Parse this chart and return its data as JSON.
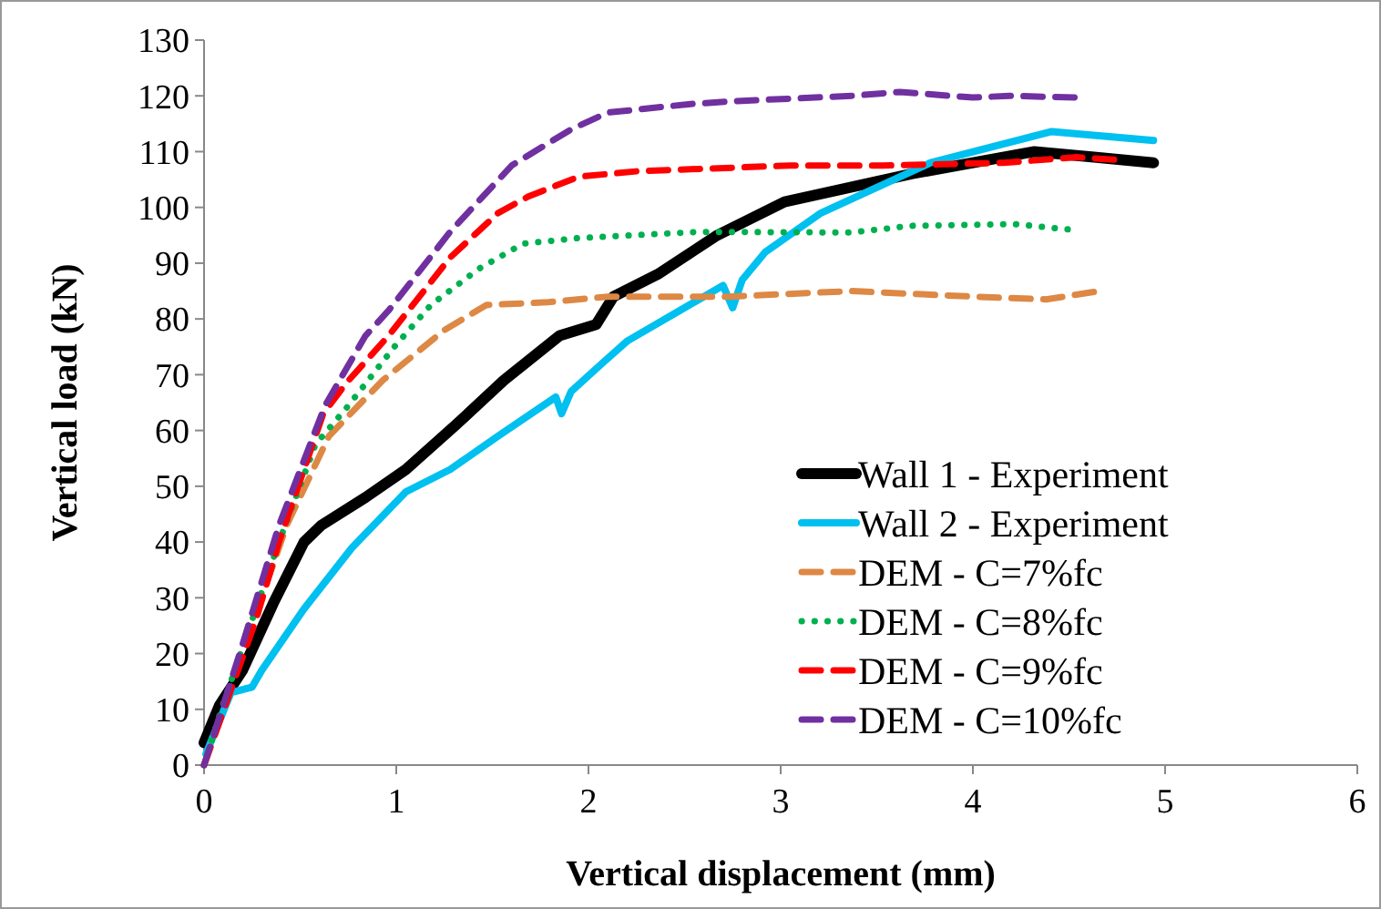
{
  "chart_data": {
    "type": "line",
    "xlabel": "Vertical displacement (mm)",
    "ylabel": "Vertical load (kN)",
    "xlim": [
      0,
      6
    ],
    "xticks": [
      0,
      1,
      2,
      3,
      4,
      5,
      6
    ],
    "ylim": [
      0,
      130
    ],
    "yticks": [
      0,
      10,
      20,
      30,
      40,
      50,
      60,
      70,
      80,
      90,
      100,
      110,
      120,
      130
    ],
    "grid": false,
    "legend": "bottom right",
    "marker": "none",
    "series": [
      {
        "name": "Wall 1 - Experiment",
        "color": "#000000",
        "line_style": "solid",
        "x": [
          0,
          0.08,
          0.2,
          0.36,
          0.52,
          0.61,
          0.84,
          1.05,
          1.31,
          1.56,
          1.85,
          2.04,
          2.13,
          2.36,
          2.67,
          3.02,
          3.68,
          4.32,
          4.63,
          4.94
        ],
        "values": [
          4,
          10.7,
          17,
          29,
          40,
          43,
          48,
          53,
          61,
          69,
          77,
          79,
          84,
          88,
          95,
          101,
          106,
          110,
          109,
          108
        ]
      },
      {
        "name": "Wall 2 - Experiment",
        "color": "#00c0f0",
        "line_style": "solid",
        "x": [
          0.01,
          0.14,
          0.25,
          0.3,
          0.52,
          0.77,
          1.05,
          1.28,
          1.53,
          1.83,
          1.86,
          1.91,
          2.07,
          2.2,
          2.45,
          2.7,
          2.75,
          2.8,
          2.92,
          3.21,
          3.78,
          4.41,
          4.94
        ],
        "values": [
          2,
          13,
          14,
          17,
          28,
          39,
          49,
          53,
          59,
          66,
          63,
          67,
          72,
          76,
          81,
          86,
          82,
          87,
          92,
          99,
          108,
          113.6,
          112
        ]
      },
      {
        "name": "DEM - C=7%fc",
        "color": "#dd8844",
        "line_style": "dashed",
        "x": [
          0,
          0.14,
          0.43,
          0.65,
          0.93,
          1.25,
          1.47,
          1.79,
          2.1,
          2.73,
          3.37,
          4.0,
          4.38,
          4.66
        ],
        "values": [
          0,
          14,
          43,
          59,
          69,
          78,
          82.5,
          83,
          84,
          84,
          85,
          84,
          83.5,
          85
        ]
      },
      {
        "name": "DEM - C=8%fc",
        "color": "#00b050",
        "line_style": "dotted",
        "x": [
          0,
          0.1,
          0.39,
          0.58,
          0.74,
          0.99,
          1.18,
          1.43,
          1.66,
          1.95,
          2.57,
          3.37,
          3.68,
          4.22,
          4.51
        ],
        "values": [
          0,
          11,
          40,
          57.5,
          64,
          75,
          82.5,
          89,
          93.5,
          94.5,
          95.6,
          95.5,
          96.7,
          97,
          96
        ]
      },
      {
        "name": "DEM - C=9%fc",
        "color": "#ff0000",
        "line_style": "dashed",
        "x": [
          0,
          0.27,
          0.39,
          0.62,
          0.74,
          0.96,
          1.28,
          1.53,
          1.69,
          1.95,
          2.26,
          3.05,
          3.53,
          4.16,
          4.54,
          4.76
        ],
        "values": [
          0,
          26,
          40,
          63,
          68.5,
          77,
          91,
          99,
          102,
          105.5,
          106.5,
          107.5,
          107.5,
          108,
          109,
          108.5
        ]
      },
      {
        "name": "DEM - C=10%fc",
        "color": "#7030a0",
        "line_style": "dashed",
        "x": [
          0,
          0.2,
          0.39,
          0.63,
          0.84,
          0.96,
          1.28,
          1.6,
          1.91,
          2.1,
          2.52,
          2.73,
          3.37,
          3.62,
          4.0,
          4.19,
          4.54
        ],
        "values": [
          0,
          21.6,
          43,
          64.5,
          77,
          81.5,
          95.6,
          107.5,
          114,
          117,
          118.5,
          119,
          120,
          120.7,
          119.7,
          120,
          119.7
        ]
      }
    ]
  }
}
